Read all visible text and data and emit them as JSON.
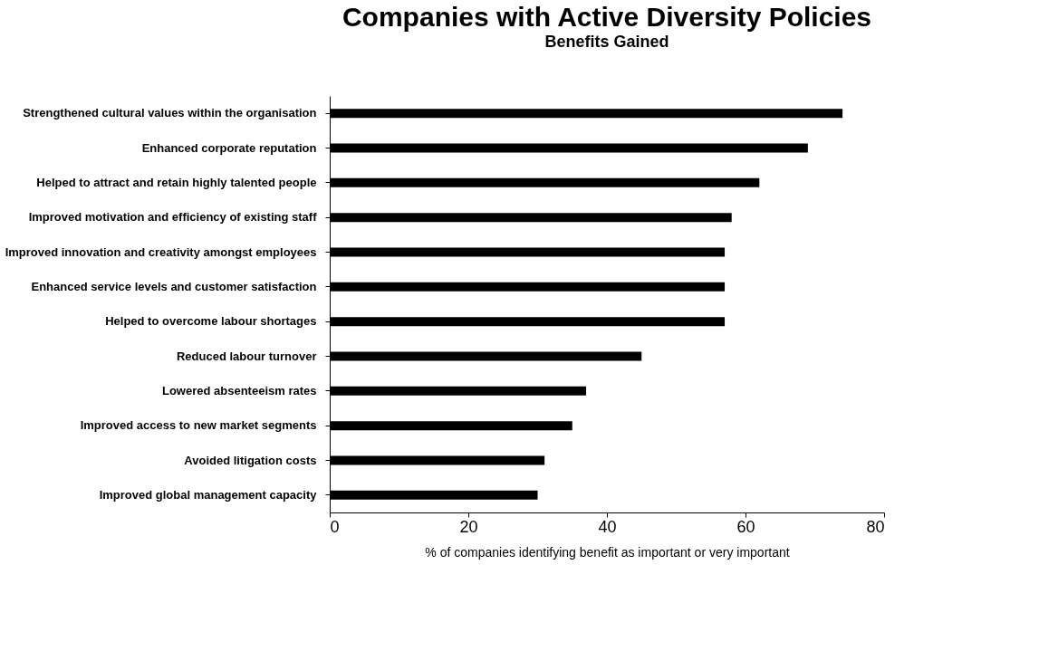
{
  "chart_data": {
    "type": "bar",
    "orientation": "horizontal",
    "title": "Companies with Active Diversity Policies",
    "subtitle": "Benefits Gained",
    "xlabel": "% of companies identifying benefit as important or very important",
    "categories": [
      "Strengthened cultural values within the organisation",
      "Enhanced corporate reputation",
      "Helped to attract and retain highly talented people",
      "Improved motivation and efficiency of existing staff",
      "Improved innovation and creativity amongst employees",
      "Enhanced service levels and customer satisfaction",
      "Helped to overcome labour shortages",
      "Reduced labour turnover",
      "Lowered absenteeism rates",
      "Improved access to new market segments",
      "Avoided litigation costs",
      "Improved global management capacity"
    ],
    "values": [
      74,
      69,
      62,
      58,
      57,
      57,
      57,
      45,
      37,
      35,
      31,
      30
    ],
    "color": "#000000",
    "xlim": [
      0,
      80
    ],
    "xticks": [
      0,
      20,
      40,
      60,
      80
    ],
    "grid": false
  }
}
